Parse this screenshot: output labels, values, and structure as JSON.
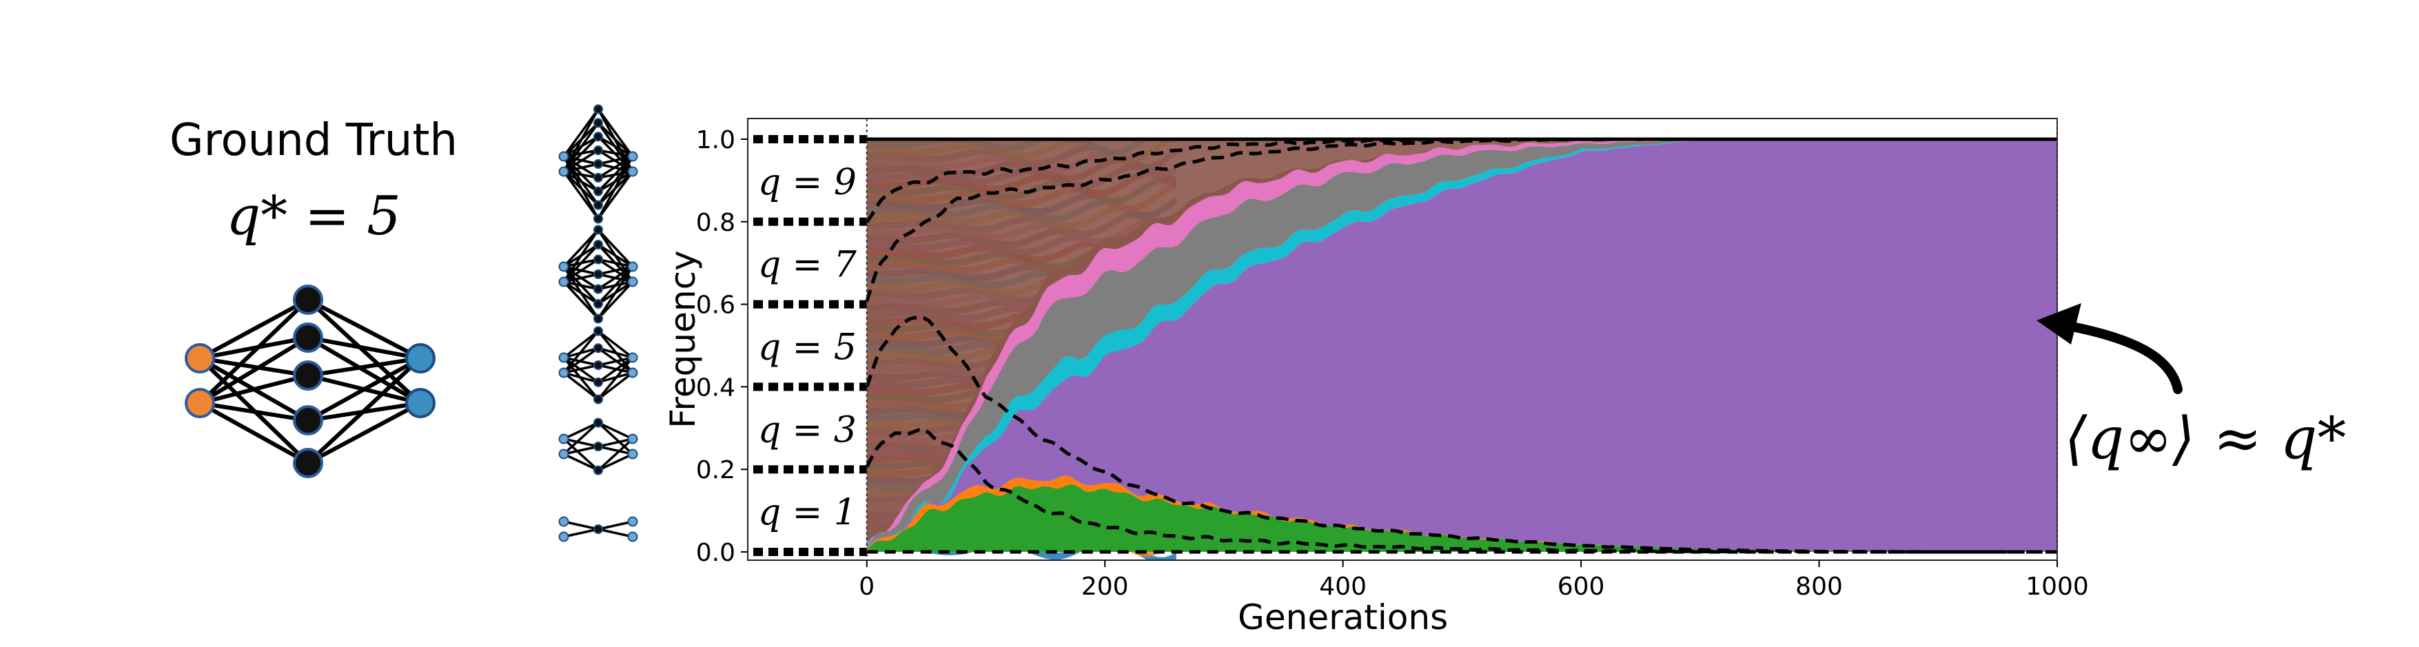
{
  "ground_truth": {
    "heading": "Ground Truth",
    "equation": "q* = 5",
    "network": {
      "inputs": 2,
      "hidden": 5,
      "outputs": 2
    }
  },
  "size_icons": [
    {
      "q": 9
    },
    {
      "q": 7
    },
    {
      "q": 5
    },
    {
      "q": 3
    },
    {
      "q": 1
    }
  ],
  "annotation": {
    "text": "⟨q∞⟩ ≈ q*"
  },
  "colors": {
    "input_node": "#ef8636",
    "output_node": "#3b8fc0",
    "hidden_node": "#111111",
    "purple": "#9467bd",
    "green": "#2ca02c",
    "orange": "#ff7f0e",
    "cyan": "#17becf",
    "gray": "#7f7f7f",
    "pink": "#e377c2",
    "brown": "#8c564b",
    "olive": "#bcbd22",
    "blue": "#1f77b4",
    "red": "#d62728"
  },
  "chart_data": {
    "type": "area",
    "xlabel": "Generations",
    "ylabel": "Frequency",
    "xlim": [
      -100,
      1000
    ],
    "ylim": [
      -0.02,
      1.05
    ],
    "xticks": [
      0,
      200,
      400,
      600,
      800,
      1000
    ],
    "yticks": [
      0.0,
      0.2,
      0.4,
      0.6,
      0.8,
      1.0
    ],
    "ytick_labels": [
      "0.0",
      "0.2",
      "0.4",
      "0.6",
      "0.8",
      "1.0"
    ],
    "band_labels": [
      {
        "text": "q = 1",
        "y": 0.1
      },
      {
        "text": "q = 3",
        "y": 0.3
      },
      {
        "text": "q = 5",
        "y": 0.5
      },
      {
        "text": "q = 7",
        "y": 0.7
      },
      {
        "text": "q = 9",
        "y": 0.9
      }
    ],
    "boundary_levels": [
      0.0,
      0.2,
      0.4,
      0.6,
      0.8,
      1.0
    ],
    "x": [
      0,
      10,
      25,
      50,
      75,
      100,
      150,
      200,
      250,
      300,
      400,
      500,
      600,
      700,
      800,
      900,
      1000
    ],
    "series": [
      {
        "color": "#2ca02c",
        "values": [
          0.0,
          0.02,
          0.04,
          0.09,
          0.12,
          0.14,
          0.16,
          0.15,
          0.12,
          0.1,
          0.06,
          0.035,
          0.018,
          0.008,
          0.003,
          0.001,
          0.0
        ]
      },
      {
        "color": "#ff7f0e",
        "values": [
          0.0,
          0.005,
          0.01,
          0.015,
          0.018,
          0.02,
          0.02,
          0.015,
          0.01,
          0.006,
          0.003,
          0.001,
          0.0,
          0.0,
          0.0,
          0.0,
          0.0
        ]
      },
      {
        "color": "#9467bd",
        "values": [
          0.0,
          0.0,
          0.0,
          0.0,
          0.02,
          0.1,
          0.2,
          0.3,
          0.42,
          0.55,
          0.72,
          0.85,
          0.95,
          0.99,
          0.997,
          0.999,
          1.0
        ]
      },
      {
        "color": "#17becf",
        "values": [
          0.0,
          0.0,
          0.0,
          0.005,
          0.01,
          0.03,
          0.05,
          0.05,
          0.045,
          0.04,
          0.03,
          0.02,
          0.005,
          0.0,
          0.0,
          0.0,
          0.0
        ]
      },
      {
        "color": "#7f7f7f",
        "values": [
          0.0,
          0.01,
          0.02,
          0.04,
          0.06,
          0.1,
          0.15,
          0.15,
          0.14,
          0.13,
          0.1,
          0.06,
          0.015,
          0.002,
          0.0,
          0.0,
          0.0
        ]
      },
      {
        "color": "#e377c2",
        "values": [
          0.0,
          0.005,
          0.01,
          0.02,
          0.03,
          0.04,
          0.05,
          0.06,
          0.06,
          0.05,
          0.03,
          0.015,
          0.005,
          0.0,
          0.0,
          0.0,
          0.0
        ]
      },
      {
        "color": "#8c564b",
        "values": [
          0.0,
          0.0,
          0.005,
          0.01,
          0.02,
          0.03,
          0.03,
          0.03,
          0.02,
          0.015,
          0.005,
          0.0,
          0.0,
          0.0,
          0.0,
          0.0,
          0.0
        ]
      }
    ],
    "quantile_lines": [
      {
        "level": 0.2,
        "values": [
          0.2,
          0.26,
          0.29,
          0.29,
          0.25,
          0.17,
          0.1,
          0.06,
          0.04,
          0.03,
          0.015,
          0.007,
          0.003,
          0.001,
          0.0,
          0.0,
          0.0
        ]
      },
      {
        "level": 0.4,
        "values": [
          0.4,
          0.48,
          0.55,
          0.57,
          0.48,
          0.38,
          0.27,
          0.19,
          0.13,
          0.1,
          0.06,
          0.035,
          0.015,
          0.005,
          0.001,
          0.0,
          0.0
        ]
      },
      {
        "level": 0.6,
        "values": [
          0.6,
          0.7,
          0.75,
          0.8,
          0.85,
          0.87,
          0.88,
          0.9,
          0.93,
          0.96,
          0.985,
          0.995,
          1.0,
          1.0,
          1.0,
          1.0,
          1.0
        ]
      },
      {
        "level": 0.8,
        "values": [
          0.8,
          0.85,
          0.88,
          0.9,
          0.92,
          0.92,
          0.93,
          0.95,
          0.97,
          0.985,
          0.995,
          1.0,
          1.0,
          1.0,
          1.0,
          1.0,
          1.0
        ]
      }
    ]
  }
}
